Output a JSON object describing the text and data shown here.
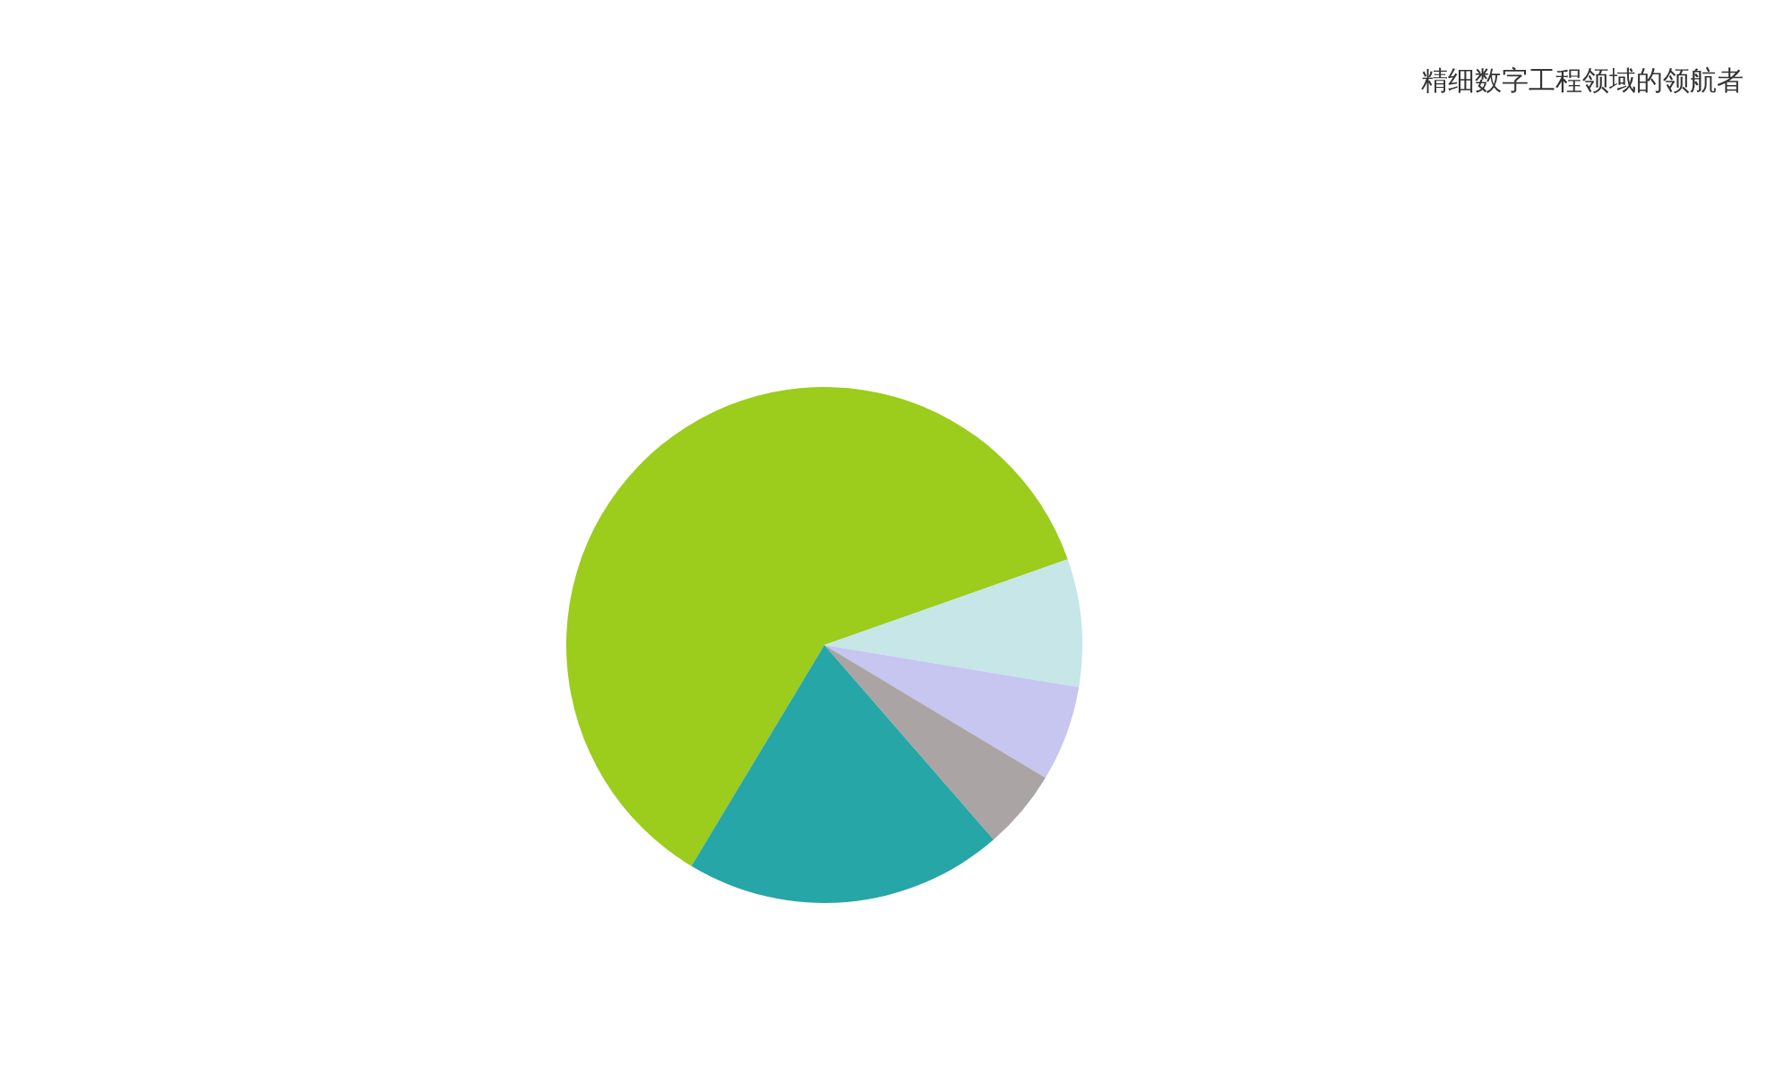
{
  "chart_data": {
    "type": "pie",
    "categories": [
      null,
      null,
      null,
      null,
      null
    ],
    "values": [
      61,
      8,
      6,
      5,
      20
    ],
    "colors": [
      "#9ccc1c",
      "#c6e6e8",
      "#c6c6f0",
      "#aaa4a4",
      "#26a6a6"
    ],
    "annotations": [
      "精细数字工程领域的领航者"
    ],
    "legend": false
  }
}
